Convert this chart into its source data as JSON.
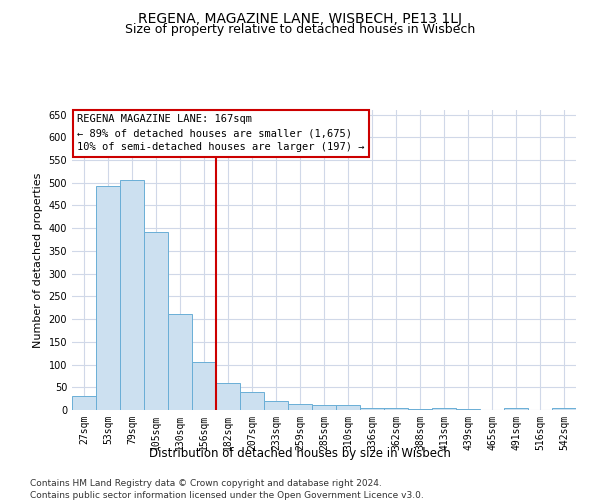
{
  "title": "REGENA, MAGAZINE LANE, WISBECH, PE13 1LJ",
  "subtitle": "Size of property relative to detached houses in Wisbech",
  "xlabel": "Distribution of detached houses by size in Wisbech",
  "ylabel": "Number of detached properties",
  "footnote1": "Contains HM Land Registry data © Crown copyright and database right 2024.",
  "footnote2": "Contains public sector information licensed under the Open Government Licence v3.0.",
  "categories": [
    "27sqm",
    "53sqm",
    "79sqm",
    "105sqm",
    "130sqm",
    "156sqm",
    "182sqm",
    "207sqm",
    "233sqm",
    "259sqm",
    "285sqm",
    "310sqm",
    "336sqm",
    "362sqm",
    "388sqm",
    "413sqm",
    "439sqm",
    "465sqm",
    "491sqm",
    "516sqm",
    "542sqm"
  ],
  "values": [
    30,
    493,
    505,
    392,
    211,
    106,
    60,
    40,
    20,
    14,
    12,
    10,
    5,
    4,
    3,
    5,
    2,
    1,
    5,
    1,
    4
  ],
  "bar_color": "#cce0f0",
  "bar_edge_color": "#6aaed6",
  "vertical_line_x": 5.5,
  "vertical_line_color": "#cc0000",
  "annotation_box_text": "REGENA MAGAZINE LANE: 167sqm\n← 89% of detached houses are smaller (1,675)\n10% of semi-detached houses are larger (197) →",
  "annotation_box_color": "#cc0000",
  "ylim": [
    0,
    660
  ],
  "yticks": [
    0,
    50,
    100,
    150,
    200,
    250,
    300,
    350,
    400,
    450,
    500,
    550,
    600,
    650
  ],
  "bg_color": "#ffffff",
  "grid_color": "#d0d8e8",
  "title_fontsize": 10,
  "subtitle_fontsize": 9,
  "xlabel_fontsize": 8.5,
  "ylabel_fontsize": 8,
  "tick_fontsize": 7,
  "footnote_fontsize": 6.5,
  "ann_fontsize": 7.5
}
